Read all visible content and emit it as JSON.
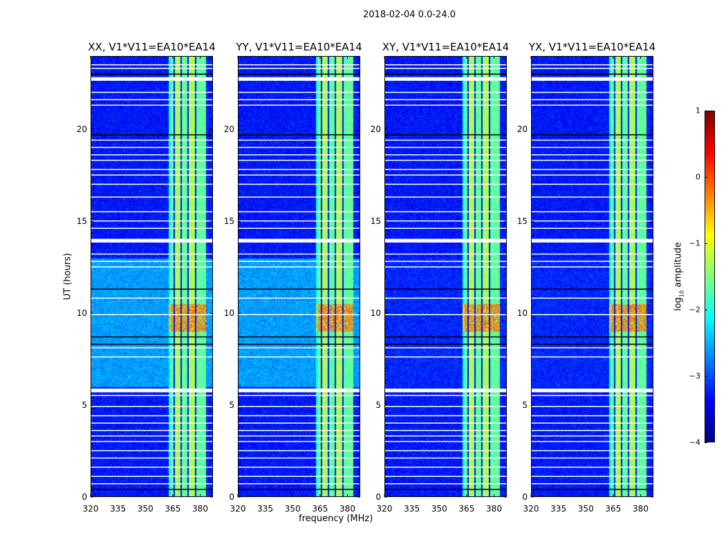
{
  "suptitle": "2018-02-04 0.0-24.0",
  "chart_data": {
    "type": "heatmap",
    "title": "2018-02-04 0.0-24.0",
    "xlabel": "frequency (MHz)",
    "ylabel": "UT (hours)",
    "xlim": [
      320,
      387
    ],
    "ylim": [
      0,
      24
    ],
    "xticks": [
      320,
      335,
      350,
      365,
      380
    ],
    "yticks": [
      0,
      5,
      10,
      15,
      20
    ],
    "panels": [
      {
        "title": "XX, V1*V11=EA10*EA14",
        "cross": false
      },
      {
        "title": "YY, V1*V11=EA10*EA14",
        "cross": false
      },
      {
        "title": "XY, V1*V11=EA10*EA14",
        "cross": true
      },
      {
        "title": "YX, V1*V11=EA10*EA14",
        "cross": true
      }
    ],
    "rfi_band_mhz": [
      362.5,
      383
    ],
    "rfi_subband_edges_mhz": [
      365.5,
      369.3,
      373.3,
      377.2
    ],
    "strong_rfi_hours": [
      9.0,
      10.5
    ],
    "elevated_background_hours": [
      6.0,
      13.0
    ],
    "flagged_rows_wide_hours": [
      [
        22.65,
        22.85
      ],
      [
        13.85,
        14.05
      ],
      [
        5.7,
        5.9
      ]
    ],
    "flagged_rows_thin_hours": [
      0.7,
      1.1,
      1.6,
      2.1,
      2.5,
      3.0,
      3.3,
      3.6,
      4.0,
      4.4,
      4.9,
      5.5,
      7.6,
      8.1,
      9.9,
      10.8,
      12.5,
      12.8,
      13.2,
      14.6,
      15.0,
      15.5,
      16.3,
      17.0,
      17.5,
      17.8,
      18.3,
      18.6,
      19.0,
      19.4,
      21.3,
      21.6,
      22.0,
      23.3,
      23.5
    ],
    "dark_rows_hours": [
      0.4,
      8.3,
      8.7,
      11.3,
      19.7,
      23.0
    ],
    "colorbar": {
      "label": "log10 amplitude",
      "label_main": "log",
      "label_sub": "10",
      "label_rest": " amplitude",
      "range": [
        -4,
        1
      ],
      "ticks": [
        "1",
        "0",
        "−1",
        "−2",
        "−3",
        "−4"
      ],
      "tick_values": [
        1,
        0,
        -1,
        -2,
        -3,
        -4
      ],
      "colormap": "jet"
    }
  }
}
